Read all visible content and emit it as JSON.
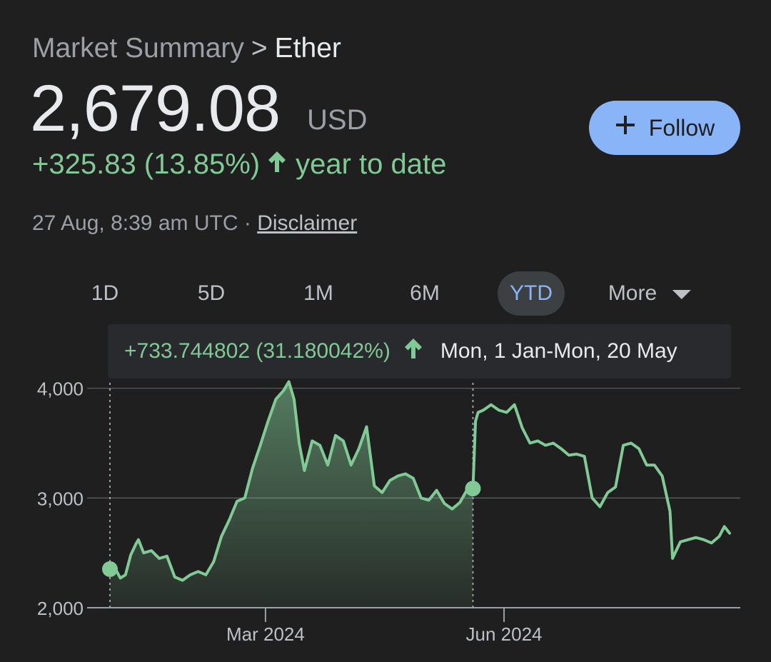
{
  "breadcrumb": {
    "parent": "Market Summary",
    "separator": ">",
    "current": "Ether"
  },
  "price": {
    "value": "2,679.08",
    "currency": "USD"
  },
  "change": {
    "text": "+325.83 (13.85%)",
    "period": "year to date"
  },
  "timestamp": {
    "text": "27 Aug, 8:39 am UTC",
    "separator": "·",
    "disclaimer": "Disclaimer"
  },
  "follow_button": {
    "label": "Follow"
  },
  "ranges": [
    "1D",
    "5D",
    "1M",
    "6M",
    "YTD",
    "More"
  ],
  "active_range": "YTD",
  "tooltip": {
    "change": "+733.744802 (31.180042%)",
    "range": "Mon, 1 Jan-Mon, 20 May"
  },
  "colors": {
    "accent": "#8ab4f8",
    "positive": "#81c995",
    "background": "#1f1f1f"
  },
  "icons": {
    "follow": "plus-icon",
    "change": "arrow-up-icon",
    "more": "caret-down-icon"
  },
  "chart_data": {
    "type": "line",
    "ylim": [
      2000,
      4050
    ],
    "yticks": [
      2000,
      3000,
      4000
    ],
    "ytick_labels": [
      "2,000",
      "3,000",
      "4,000"
    ],
    "xticks": [
      "2024-03-01",
      "2024-06-01"
    ],
    "xtick_labels": [
      "Mar 2024",
      "Jun 2024"
    ],
    "x_range": [
      "2024-01-01",
      "2024-08-27"
    ],
    "grid": true,
    "selection": {
      "start": "2024-01-01",
      "end": "2024-05-20",
      "start_value": 2352,
      "end_value": 3086
    },
    "series": [
      {
        "x": [
          "2024-01-01",
          "2024-01-03",
          "2024-01-05",
          "2024-01-07",
          "2024-01-09",
          "2024-01-11",
          "2024-01-12",
          "2024-01-14",
          "2024-01-17",
          "2024-01-20",
          "2024-01-23",
          "2024-01-26",
          "2024-01-29",
          "2024-02-01",
          "2024-02-04",
          "2024-02-07",
          "2024-02-10",
          "2024-02-13",
          "2024-02-16",
          "2024-02-19",
          "2024-02-22",
          "2024-02-25",
          "2024-02-28",
          "2024-03-02",
          "2024-03-05",
          "2024-03-08",
          "2024-03-10",
          "2024-03-12",
          "2024-03-14",
          "2024-03-16",
          "2024-03-19",
          "2024-03-22",
          "2024-03-25",
          "2024-03-28",
          "2024-03-31",
          "2024-04-03",
          "2024-04-06",
          "2024-04-09",
          "2024-04-12",
          "2024-04-15",
          "2024-04-18",
          "2024-04-21",
          "2024-04-24",
          "2024-04-27",
          "2024-04-30",
          "2024-05-03",
          "2024-05-06",
          "2024-05-09",
          "2024-05-12",
          "2024-05-15",
          "2024-05-18",
          "2024-05-20",
          "2024-05-21",
          "2024-05-22",
          "2024-05-24",
          "2024-05-27",
          "2024-05-30",
          "2024-06-02",
          "2024-06-05",
          "2024-06-08",
          "2024-06-11",
          "2024-06-14",
          "2024-06-17",
          "2024-06-20",
          "2024-06-23",
          "2024-06-26",
          "2024-06-29",
          "2024-07-02",
          "2024-07-05",
          "2024-07-08",
          "2024-07-11",
          "2024-07-14",
          "2024-07-17",
          "2024-07-20",
          "2024-07-23",
          "2024-07-26",
          "2024-07-29",
          "2024-08-01",
          "2024-08-04",
          "2024-08-05",
          "2024-08-08",
          "2024-08-11",
          "2024-08-14",
          "2024-08-17",
          "2024-08-20",
          "2024-08-23",
          "2024-08-25",
          "2024-08-27"
        ],
        "y": [
          2352,
          2360,
          2270,
          2300,
          2480,
          2580,
          2620,
          2500,
          2520,
          2450,
          2470,
          2280,
          2250,
          2300,
          2330,
          2300,
          2420,
          2650,
          2800,
          2970,
          3000,
          3270,
          3480,
          3700,
          3900,
          3980,
          4060,
          3900,
          3500,
          3250,
          3520,
          3480,
          3300,
          3570,
          3520,
          3300,
          3450,
          3650,
          3110,
          3050,
          3160,
          3200,
          3220,
          3180,
          3000,
          2980,
          3070,
          2950,
          2900,
          2960,
          3086,
          3086,
          3700,
          3780,
          3800,
          3850,
          3800,
          3780,
          3850,
          3640,
          3500,
          3520,
          3480,
          3500,
          3450,
          3390,
          3400,
          3380,
          3000,
          2920,
          3050,
          3100,
          3480,
          3500,
          3450,
          3300,
          3300,
          3200,
          2880,
          2450,
          2600,
          2620,
          2640,
          2620,
          2590,
          2650,
          2740,
          2679
        ]
      }
    ]
  }
}
